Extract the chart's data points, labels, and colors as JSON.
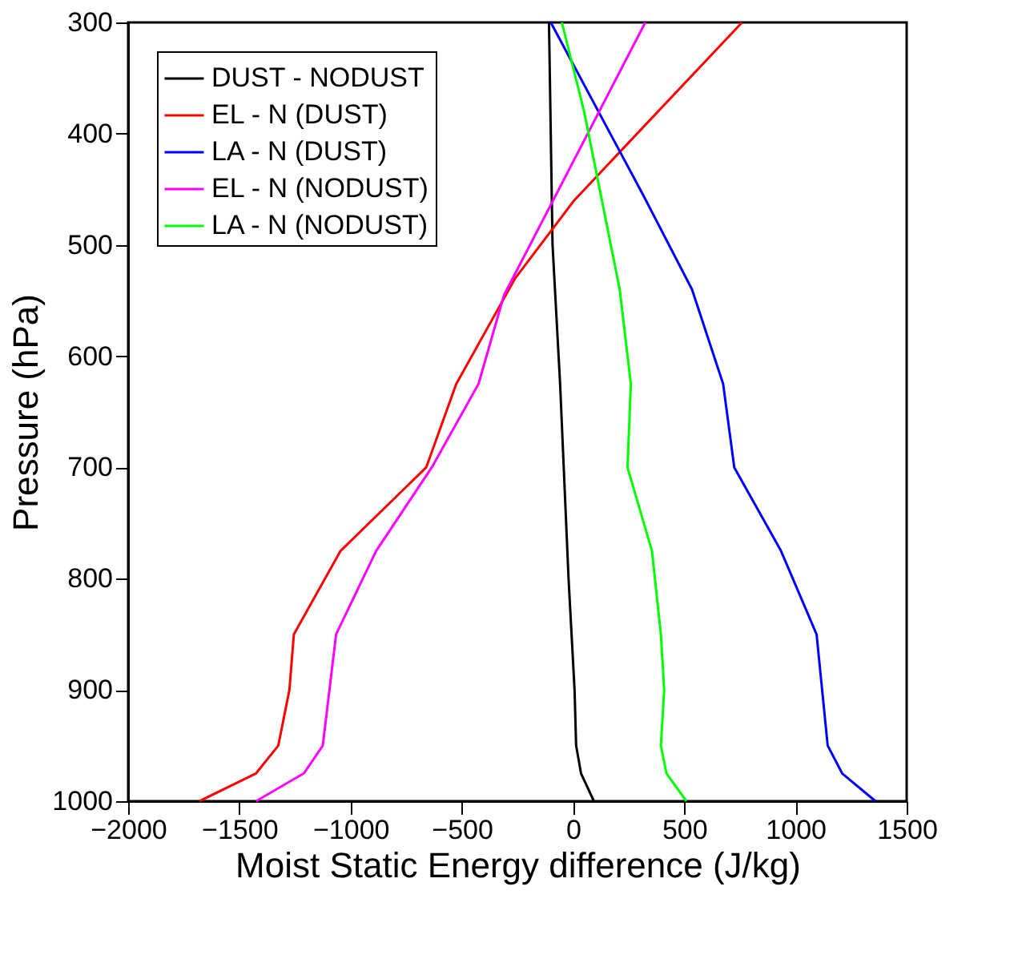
{
  "chart_data": {
    "type": "line",
    "xlabel": "Moist Static Energy difference (J/kg)",
    "ylabel": "Pressure (hPa)",
    "xlim": [
      -2000,
      1500
    ],
    "xticks": [
      -2000,
      -1500,
      -1000,
      -500,
      0,
      500,
      1000,
      1500
    ],
    "ylim": [
      1000,
      300
    ],
    "yticks": [
      300,
      400,
      500,
      600,
      700,
      800,
      900,
      1000
    ],
    "grid": false,
    "legend": "top left",
    "marker": "none",
    "line_style": "solid",
    "series": [
      {
        "name": "DUST - NODUST",
        "color": "#000000",
        "x": [
          94,
          36,
          14,
          7,
          -20,
          -58,
          -92,
          -108
        ],
        "values": [
          1000,
          975,
          950,
          900,
          800,
          625,
          500,
          300
        ]
      },
      {
        "name": "EL - N (DUST)",
        "color": "#ff0000",
        "x": [
          -1680,
          -1425,
          -1325,
          -1275,
          -1255,
          -1045,
          -660,
          -525,
          -260,
          5,
          760
        ],
        "values": [
          1000,
          975,
          950,
          900,
          850,
          775,
          700,
          625,
          530,
          460,
          300
        ]
      },
      {
        "name": "LA - N (DUST)",
        "color": "#0000ff",
        "x": [
          1360,
          1210,
          1145,
          1095,
          935,
          725,
          675,
          535,
          315,
          -100
        ],
        "values": [
          1000,
          975,
          950,
          850,
          775,
          700,
          625,
          540,
          455,
          300
        ]
      },
      {
        "name": "EL - N (NODUST)",
        "color": "#ff00ff",
        "x": [
          -1425,
          -1210,
          -1125,
          -1095,
          -1065,
          -885,
          -635,
          -425,
          -310,
          325
        ],
        "values": [
          1000,
          975,
          950,
          900,
          850,
          775,
          700,
          625,
          545,
          300
        ]
      },
      {
        "name": "LA - N (NODUST)",
        "color": "#00ff00",
        "x": [
          510,
          420,
          395,
          410,
          395,
          355,
          245,
          260,
          210,
          50,
          -50
        ],
        "values": [
          1000,
          975,
          950,
          900,
          850,
          775,
          700,
          625,
          540,
          380,
          300
        ]
      }
    ]
  }
}
